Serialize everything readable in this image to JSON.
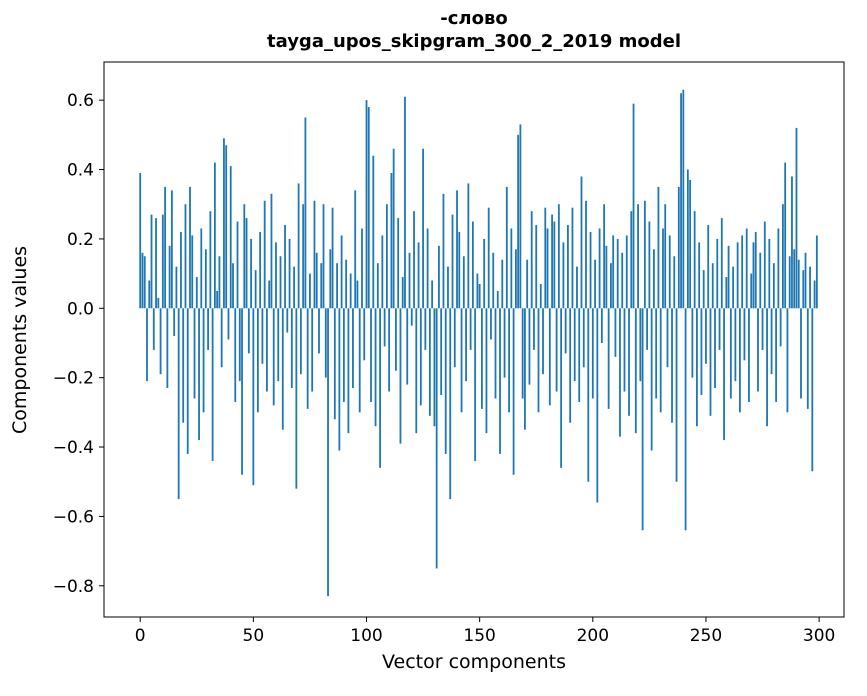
{
  "figure": {
    "title_line1": "-слово",
    "title_line2": "tayga_upos_skipgram_300_2_2019 model",
    "xlabel": "Vector components",
    "ylabel": "Components values"
  },
  "chart_data": {
    "type": "bar",
    "title": "-слово",
    "subtitle": "tayga_upos_skipgram_300_2_2019 model",
    "xlabel": "Vector components",
    "ylabel": "Components values",
    "bar_color": "#1f77b4",
    "grid": false,
    "legend": "none",
    "xlim": [
      -16,
      311
    ],
    "ylim": [
      -0.89,
      0.71
    ],
    "xticks": [
      0,
      50,
      100,
      150,
      200,
      250,
      300
    ],
    "xtick_labels": [
      "0",
      "50",
      "100",
      "150",
      "200",
      "250",
      "300"
    ],
    "yticks": [
      0.6,
      0.4,
      0.2,
      0.0,
      -0.2,
      -0.4,
      -0.6,
      -0.8
    ],
    "ytick_labels": [
      "0.6",
      "0.4",
      "0.2",
      "0.0",
      "−0.2",
      "−0.4",
      "−0.6",
      "−0.8"
    ],
    "values": [
      0.39,
      0.16,
      0.15,
      -0.21,
      0.08,
      0.27,
      -0.12,
      0.26,
      0.03,
      -0.19,
      0.27,
      0.35,
      -0.23,
      0.18,
      0.34,
      -0.08,
      0.12,
      -0.55,
      0.22,
      -0.33,
      0.3,
      -0.42,
      0.35,
      0.21,
      -0.26,
      0.09,
      -0.38,
      0.23,
      -0.3,
      0.17,
      -0.12,
      0.28,
      -0.44,
      0.42,
      0.05,
      0.15,
      -0.17,
      0.49,
      0.47,
      -0.09,
      0.41,
      0.13,
      -0.27,
      0.25,
      -0.21,
      -0.48,
      0.3,
      0.26,
      -0.13,
      0.2,
      -0.51,
      0.11,
      -0.3,
      0.22,
      -0.16,
      0.31,
      -0.24,
      0.08,
      0.33,
      -0.28,
      0.19,
      -0.21,
      0.15,
      -0.35,
      0.24,
      -0.07,
      0.2,
      -0.23,
      0.12,
      -0.52,
      0.36,
      -0.19,
      0.3,
      0.55,
      -0.29,
      0.1,
      -0.24,
      0.31,
      0.16,
      -0.13,
      0.13,
      0.3,
      -0.2,
      -0.83,
      0.17,
      0.29,
      -0.32,
      0.13,
      -0.41,
      0.21,
      -0.27,
      0.14,
      -0.36,
      0.1,
      -0.23,
      0.34,
      0.08,
      -0.3,
      0.23,
      -0.15,
      0.6,
      0.58,
      -0.27,
      0.44,
      -0.34,
      0.13,
      -0.46,
      0.21,
      -0.11,
      0.3,
      -0.24,
      0.39,
      0.46,
      -0.18,
      0.26,
      -0.39,
      0.09,
      0.61,
      -0.22,
      0.16,
      -0.05,
      0.28,
      -0.36,
      0.19,
      -0.28,
      0.46,
      -0.12,
      0.23,
      -0.31,
      0.08,
      -0.34,
      -0.75,
      0.18,
      -0.25,
      0.33,
      -0.42,
      0.12,
      -0.55,
      0.27,
      -0.17,
      0.34,
      0.22,
      -0.3,
      0.15,
      -0.21,
      0.36,
      -0.12,
      0.25,
      -0.44,
      0.1,
      0.07,
      -0.29,
      0.2,
      -0.36,
      0.29,
      -0.09,
      0.16,
      -0.26,
      0.05,
      -0.42,
      0.14,
      -0.2,
      0.35,
      -0.3,
      0.23,
      -0.48,
      0.17,
      0.5,
      0.53,
      -0.26,
      -0.35,
      0.14,
      -0.22,
      0.28,
      -0.12,
      0.24,
      -0.3,
      0.07,
      -0.19,
      0.29,
      0.23,
      -0.28,
      0.27,
      0.25,
      -0.24,
      0.3,
      -0.46,
      0.19,
      -0.13,
      0.24,
      -0.33,
      0.29,
      -0.21,
      0.12,
      -0.27,
      0.38,
      -0.17,
      0.31,
      -0.5,
      0.22,
      -0.26,
      0.14,
      -0.56,
      0.23,
      -0.1,
      0.3,
      0.18,
      -0.29,
      0.13,
      0.21,
      -0.14,
      0.2,
      -0.37,
      0.16,
      -0.24,
      0.21,
      -0.31,
      0.28,
      0.59,
      -0.36,
      0.3,
      -0.21,
      -0.64,
      0.31,
      -0.12,
      0.25,
      -0.41,
      0.17,
      -0.26,
      0.35,
      -0.3,
      0.23,
      0.3,
      -0.17,
      0.21,
      -0.33,
      0.15,
      -0.5,
      0.35,
      0.62,
      0.63,
      -0.64,
      0.4,
      0.37,
      -0.2,
      0.28,
      -0.34,
      0.19,
      -0.25,
      0.11,
      -0.16,
      0.24,
      -0.31,
      0.13,
      -0.23,
      0.2,
      -0.12,
      0.26,
      -0.38,
      0.09,
      0.18,
      -0.26,
      0.12,
      -0.21,
      0.19,
      -0.3,
      0.21,
      -0.15,
      0.23,
      -0.27,
      0.1,
      0.19,
      0.22,
      -0.24,
      0.16,
      -0.12,
      0.25,
      -0.34,
      0.2,
      -0.19,
      0.13,
      -0.27,
      0.23,
      -0.11,
      0.3,
      0.42,
      -0.3,
      0.15,
      0.38,
      0.17,
      0.52,
      0.14,
      -0.26,
      0.11,
      0.16,
      -0.29,
      0.12,
      -0.47,
      0.08,
      0.21
    ]
  }
}
